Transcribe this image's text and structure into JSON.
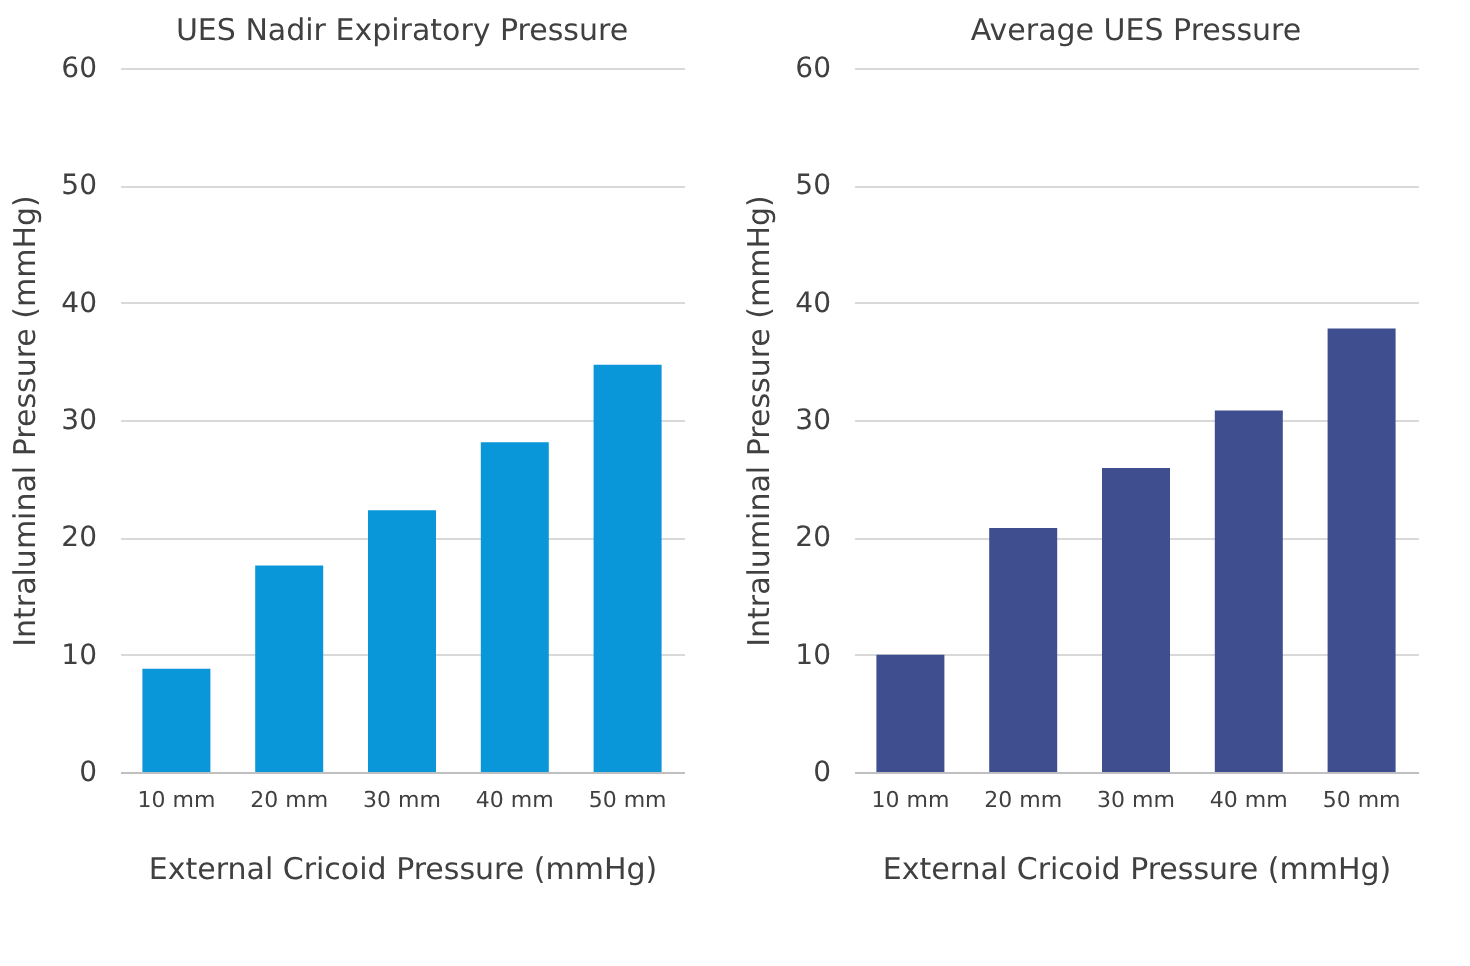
{
  "chart_data": [
    {
      "type": "bar",
      "title": "UES Nadir Expiratory Pressure",
      "xlabel": "External Cricoid Pressure (mmHg)",
      "ylabel": "Intraluminal Pressure (mmHg)",
      "categories": [
        "10 mm",
        "20 mm",
        "30 mm",
        "40 mm",
        "50 mm"
      ],
      "values": [
        8.8,
        17.6,
        22.3,
        28.1,
        34.7
      ],
      "color": "#0a97d9",
      "ylim": [
        0,
        60
      ],
      "yticks": [
        0,
        10,
        20,
        30,
        40,
        50,
        60
      ],
      "grid": "y"
    },
    {
      "type": "bar",
      "title": "Average UES Pressure",
      "xlabel": "External Cricoid Pressure (mmHg)",
      "ylabel": "Intraluminal Pressure (mmHg)",
      "categories": [
        "10 mm",
        "20 mm",
        "30 mm",
        "40 mm",
        "50 mm"
      ],
      "values": [
        10.0,
        20.8,
        25.9,
        30.8,
        37.8
      ],
      "color": "#3f4e8f",
      "ylim": [
        0,
        60
      ],
      "yticks": [
        0,
        10,
        20,
        30,
        40,
        50,
        60
      ],
      "grid": "y"
    }
  ]
}
